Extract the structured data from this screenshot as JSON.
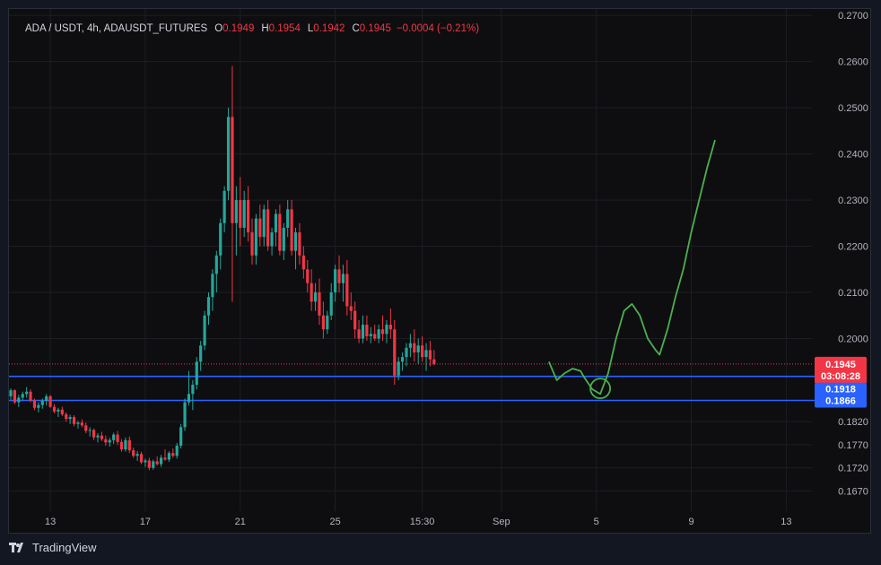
{
  "legend": {
    "symbol": "ADA / USDT, 4h, ADAUSDT_FUTURES",
    "open_label": "O",
    "open": "0.1949",
    "high_label": "H",
    "high": "0.1954",
    "low_label": "L",
    "low": "0.1942",
    "close_label": "C",
    "close": "0.1945",
    "change": "−0.0004 (−0.21%)"
  },
  "branding": {
    "logo": "tradingview-logo-icon",
    "name": "TradingView"
  },
  "price_tags": {
    "last": {
      "price": "0.1945",
      "countdown": "03:08:28",
      "color": "#f23645"
    },
    "level_1": {
      "price": "0.1918",
      "color": "#2962ff"
    },
    "level_2": {
      "price": "0.1866",
      "color": "#2962ff"
    }
  },
  "colors": {
    "up": "#26a69a",
    "down": "#f23645",
    "drawing": "#4caf50",
    "hline": "#2962ff"
  },
  "chart_data": {
    "type": "candlestick",
    "title": "",
    "xlabel": "",
    "ylabel": "",
    "ylim": [
      0.163,
      0.271
    ],
    "grid": true,
    "y_ticks": [
      "0.2700",
      "0.2600",
      "0.2500",
      "0.2400",
      "0.2300",
      "0.2200",
      "0.2100",
      "0.2000",
      "0.1820",
      "0.1770",
      "0.1720",
      "0.1670"
    ],
    "x_ticks": [
      {
        "label": "13",
        "bar": 10
      },
      {
        "label": "17",
        "bar": 34
      },
      {
        "label": "21",
        "bar": 58
      },
      {
        "label": "25",
        "bar": 82
      },
      {
        "label": "15:30",
        "bar": 104
      },
      {
        "label": "Sep",
        "bar": 124
      },
      {
        "label": "5",
        "bar": 148
      },
      {
        "label": "9",
        "bar": 172
      },
      {
        "label": "13",
        "bar": 196
      }
    ],
    "horizontal_lines": [
      0.1918,
      0.1866
    ],
    "current_price_line": 0.1945,
    "drawing_path": [
      [
        136,
        0.195
      ],
      [
        138,
        0.191
      ],
      [
        140,
        0.1925
      ],
      [
        142,
        0.1935
      ],
      [
        144,
        0.193
      ],
      [
        145,
        0.1915
      ],
      [
        147,
        0.189
      ],
      [
        149,
        0.188
      ],
      [
        151,
        0.1925
      ],
      [
        153,
        0.2
      ],
      [
        155,
        0.206
      ],
      [
        157,
        0.2075
      ],
      [
        159,
        0.205
      ],
      [
        161,
        0.2
      ],
      [
        163,
        0.1975
      ],
      [
        164,
        0.1965
      ],
      [
        166,
        0.202
      ],
      [
        168,
        0.209
      ],
      [
        170,
        0.215
      ],
      [
        172,
        0.223
      ],
      [
        174,
        0.23
      ],
      [
        176,
        0.237
      ],
      [
        178,
        0.243
      ]
    ],
    "drawing_circle": {
      "bar": 149,
      "price": 0.1892
    },
    "series": [
      {
        "name": "",
        "ohlc": [
          [
            0.1875,
            0.1892,
            0.1868,
            0.1888
          ],
          [
            0.1888,
            0.189,
            0.1858,
            0.1862
          ],
          [
            0.1862,
            0.1878,
            0.1852,
            0.1872
          ],
          [
            0.1872,
            0.1885,
            0.1866,
            0.188
          ],
          [
            0.188,
            0.1895,
            0.1872,
            0.1885
          ],
          [
            0.1885,
            0.189,
            0.1862,
            0.1866
          ],
          [
            0.1866,
            0.187,
            0.1845,
            0.185
          ],
          [
            0.185,
            0.1862,
            0.184,
            0.1856
          ],
          [
            0.1856,
            0.187,
            0.1848,
            0.1865
          ],
          [
            0.1865,
            0.188,
            0.1855,
            0.1875
          ],
          [
            0.1875,
            0.1878,
            0.185,
            0.1852
          ],
          [
            0.1852,
            0.1858,
            0.1838,
            0.1842
          ],
          [
            0.1842,
            0.185,
            0.183,
            0.1846
          ],
          [
            0.1846,
            0.1852,
            0.1832,
            0.1836
          ],
          [
            0.1836,
            0.184,
            0.182,
            0.1826
          ],
          [
            0.1826,
            0.1835,
            0.1815,
            0.183
          ],
          [
            0.183,
            0.1834,
            0.181,
            0.1815
          ],
          [
            0.1815,
            0.1822,
            0.1805,
            0.1818
          ],
          [
            0.1818,
            0.1825,
            0.1808,
            0.1812
          ],
          [
            0.1812,
            0.1818,
            0.1795,
            0.18
          ],
          [
            0.18,
            0.1808,
            0.1788,
            0.1802
          ],
          [
            0.1802,
            0.1805,
            0.178,
            0.1786
          ],
          [
            0.1786,
            0.1795,
            0.1775,
            0.179
          ],
          [
            0.179,
            0.1798,
            0.1778,
            0.1782
          ],
          [
            0.1782,
            0.179,
            0.1768,
            0.1775
          ],
          [
            0.1775,
            0.1785,
            0.1766,
            0.178
          ],
          [
            0.178,
            0.1796,
            0.1772,
            0.1792
          ],
          [
            0.1792,
            0.18,
            0.177,
            0.1776
          ],
          [
            0.1776,
            0.1782,
            0.1755,
            0.176
          ],
          [
            0.176,
            0.1786,
            0.1755,
            0.178
          ],
          [
            0.178,
            0.1788,
            0.1752,
            0.1758
          ],
          [
            0.1758,
            0.1764,
            0.1742,
            0.1746
          ],
          [
            0.1746,
            0.1756,
            0.1735,
            0.175
          ],
          [
            0.175,
            0.1755,
            0.1728,
            0.1732
          ],
          [
            0.1732,
            0.174,
            0.1722,
            0.1736
          ],
          [
            0.1736,
            0.1742,
            0.1715,
            0.172
          ],
          [
            0.172,
            0.1738,
            0.1716,
            0.1734
          ],
          [
            0.1734,
            0.1745,
            0.1725,
            0.1728
          ],
          [
            0.1728,
            0.1748,
            0.1722,
            0.1742
          ],
          [
            0.1742,
            0.176,
            0.1735,
            0.1738
          ],
          [
            0.1738,
            0.1756,
            0.1733,
            0.1752
          ],
          [
            0.1752,
            0.1762,
            0.1742,
            0.1746
          ],
          [
            0.1746,
            0.1774,
            0.174,
            0.1768
          ],
          [
            0.1768,
            0.1815,
            0.1762,
            0.1808
          ],
          [
            0.1808,
            0.187,
            0.18,
            0.1862
          ],
          [
            0.1862,
            0.193,
            0.1855,
            0.188
          ],
          [
            0.188,
            0.191,
            0.1845,
            0.19
          ],
          [
            0.19,
            0.196,
            0.189,
            0.195
          ],
          [
            0.195,
            0.1995,
            0.193,
            0.1985
          ],
          [
            0.1985,
            0.206,
            0.1975,
            0.205
          ],
          [
            0.205,
            0.21,
            0.203,
            0.209
          ],
          [
            0.209,
            0.215,
            0.206,
            0.214
          ],
          [
            0.214,
            0.219,
            0.21,
            0.218
          ],
          [
            0.218,
            0.226,
            0.215,
            0.225
          ],
          [
            0.225,
            0.233,
            0.223,
            0.232
          ],
          [
            0.232,
            0.25,
            0.23,
            0.248
          ],
          [
            0.248,
            0.259,
            0.208,
            0.225
          ],
          [
            0.225,
            0.233,
            0.218,
            0.23
          ],
          [
            0.23,
            0.235,
            0.22,
            0.224
          ],
          [
            0.224,
            0.232,
            0.222,
            0.23
          ],
          [
            0.23,
            0.233,
            0.221,
            0.223
          ],
          [
            0.223,
            0.226,
            0.216,
            0.218
          ],
          [
            0.218,
            0.227,
            0.216,
            0.226
          ],
          [
            0.226,
            0.229,
            0.22,
            0.222
          ],
          [
            0.222,
            0.229,
            0.22,
            0.228
          ],
          [
            0.228,
            0.23,
            0.219,
            0.22
          ],
          [
            0.22,
            0.224,
            0.218,
            0.223
          ],
          [
            0.223,
            0.228,
            0.22,
            0.227
          ],
          [
            0.227,
            0.229,
            0.218,
            0.219
          ],
          [
            0.219,
            0.225,
            0.217,
            0.224
          ],
          [
            0.224,
            0.23,
            0.222,
            0.228
          ],
          [
            0.228,
            0.23,
            0.218,
            0.219
          ],
          [
            0.219,
            0.224,
            0.215,
            0.223
          ],
          [
            0.223,
            0.225,
            0.216,
            0.218
          ],
          [
            0.218,
            0.22,
            0.213,
            0.215
          ],
          [
            0.215,
            0.217,
            0.21,
            0.212
          ],
          [
            0.212,
            0.215,
            0.206,
            0.208
          ],
          [
            0.208,
            0.212,
            0.206,
            0.21
          ],
          [
            0.21,
            0.213,
            0.203,
            0.205
          ],
          [
            0.205,
            0.208,
            0.2,
            0.202
          ],
          [
            0.202,
            0.206,
            0.201,
            0.205
          ],
          [
            0.205,
            0.212,
            0.204,
            0.21
          ],
          [
            0.21,
            0.216,
            0.208,
            0.215
          ],
          [
            0.215,
            0.218,
            0.21,
            0.212
          ],
          [
            0.212,
            0.216,
            0.208,
            0.214
          ],
          [
            0.214,
            0.217,
            0.205,
            0.207
          ],
          [
            0.207,
            0.21,
            0.204,
            0.206
          ],
          [
            0.206,
            0.208,
            0.2,
            0.202
          ],
          [
            0.202,
            0.204,
            0.199,
            0.2
          ],
          [
            0.2,
            0.205,
            0.199,
            0.203
          ],
          [
            0.203,
            0.205,
            0.1995,
            0.2005
          ],
          [
            0.2005,
            0.2025,
            0.199,
            0.201
          ],
          [
            0.201,
            0.203,
            0.1995,
            0.2
          ],
          [
            0.2,
            0.203,
            0.199,
            0.202
          ],
          [
            0.202,
            0.205,
            0.1995,
            0.201
          ],
          [
            0.201,
            0.204,
            0.199,
            0.203
          ],
          [
            0.203,
            0.2065,
            0.2,
            0.202
          ],
          [
            0.202,
            0.204,
            0.19,
            0.192
          ],
          [
            0.192,
            0.196,
            0.191,
            0.195
          ],
          [
            0.195,
            0.197,
            0.193,
            0.196
          ],
          [
            0.196,
            0.199,
            0.194,
            0.198
          ],
          [
            0.198,
            0.201,
            0.196,
            0.199
          ],
          [
            0.199,
            0.202,
            0.195,
            0.197
          ],
          [
            0.197,
            0.2,
            0.1945,
            0.1985
          ],
          [
            0.1985,
            0.2005,
            0.195,
            0.196
          ],
          [
            0.196,
            0.199,
            0.193,
            0.1975
          ],
          [
            0.1975,
            0.1995,
            0.194,
            0.1955
          ],
          [
            0.1955,
            0.1975,
            0.1942,
            0.1945
          ]
        ]
      }
    ]
  }
}
